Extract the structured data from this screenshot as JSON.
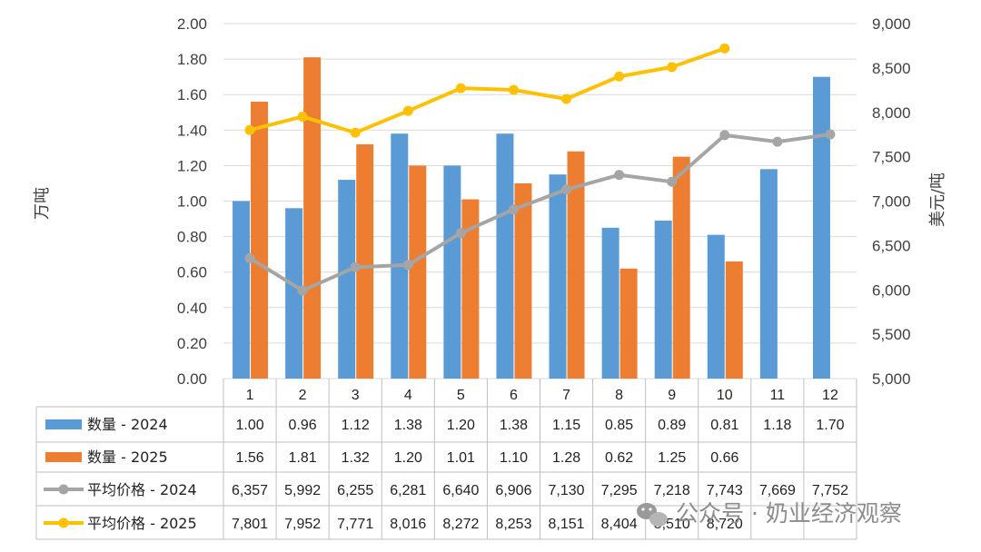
{
  "chart_data": {
    "type": "bar",
    "categories": [
      "1",
      "2",
      "3",
      "4",
      "5",
      "6",
      "7",
      "8",
      "9",
      "10",
      "11",
      "12"
    ],
    "ylabel": "万吨",
    "y2label": "美元/吨",
    "ylim": [
      0,
      2.0
    ],
    "y2lim": [
      5000,
      9000
    ],
    "yticks": [
      "0.00",
      "0.20",
      "0.40",
      "0.60",
      "0.80",
      "1.00",
      "1.20",
      "1.40",
      "1.60",
      "1.80",
      "2.00"
    ],
    "y2ticks": [
      "5,000",
      "5,500",
      "6,000",
      "6,500",
      "7,000",
      "7,500",
      "8,000",
      "8,500",
      "9,000"
    ],
    "series": [
      {
        "name": "数量 - 2024",
        "kind": "bar",
        "axis": "left",
        "color": "#5b9bd5",
        "values": [
          1.0,
          0.96,
          1.12,
          1.38,
          1.2,
          1.38,
          1.15,
          0.85,
          0.89,
          0.81,
          1.18,
          1.7
        ],
        "labels": [
          "1.00",
          "0.96",
          "1.12",
          "1.38",
          "1.20",
          "1.38",
          "1.15",
          "0.85",
          "0.89",
          "0.81",
          "1.18",
          "1.70"
        ]
      },
      {
        "name": "数量 - 2025",
        "kind": "bar",
        "axis": "left",
        "color": "#ed7d31",
        "values": [
          1.56,
          1.81,
          1.32,
          1.2,
          1.01,
          1.1,
          1.28,
          0.62,
          1.25,
          0.66,
          null,
          null
        ],
        "labels": [
          "1.56",
          "1.81",
          "1.32",
          "1.20",
          "1.01",
          "1.10",
          "1.28",
          "0.62",
          "1.25",
          "0.66",
          "",
          ""
        ]
      },
      {
        "name": "平均价格 - 2024",
        "kind": "line",
        "axis": "right",
        "color": "#a5a5a5",
        "values": [
          6357,
          5992,
          6255,
          6281,
          6640,
          6906,
          7130,
          7295,
          7218,
          7743,
          7669,
          7752
        ],
        "labels": [
          "6,357",
          "5,992",
          "6,255",
          "6,281",
          "6,640",
          "6,906",
          "7,130",
          "7,295",
          "7,218",
          "7,743",
          "7,669",
          "7,752"
        ]
      },
      {
        "name": "平均价格 - 2025",
        "kind": "line",
        "axis": "right",
        "color": "#ffc000",
        "values": [
          7801,
          7952,
          7771,
          8016,
          8272,
          8253,
          8151,
          8404,
          8510,
          8720,
          null,
          null
        ],
        "labels": [
          "7,801",
          "7,952",
          "7,771",
          "8,016",
          "8,272",
          "8,253",
          "8,151",
          "8,404",
          "8,510",
          "8,720",
          "",
          ""
        ]
      }
    ],
    "grid": true,
    "legend": "data-table-left"
  },
  "watermark": "公众号 · 奶业经济观察",
  "watermark_icon": "wechat-icon"
}
